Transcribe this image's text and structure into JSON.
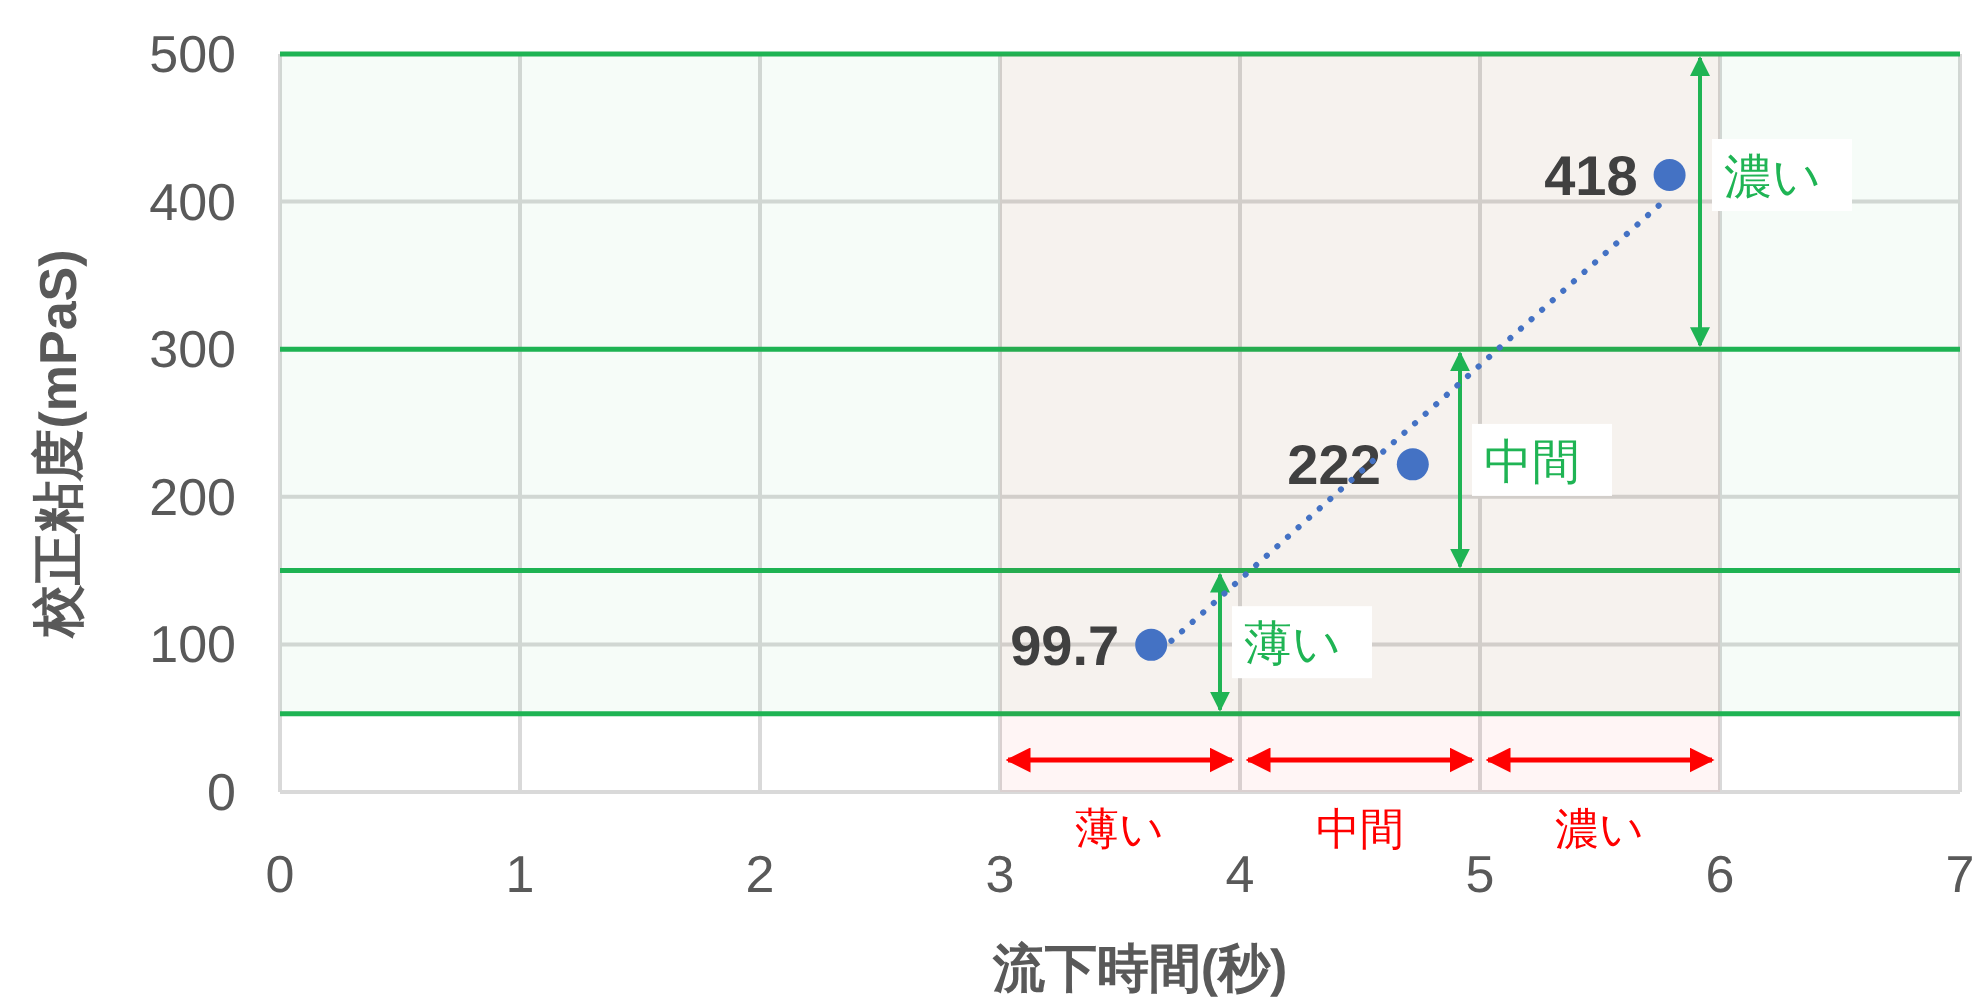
{
  "chart_data": {
    "type": "scatter",
    "xlabel": "流下時間(秒)",
    "ylabel": "校正粘度(mPaS)",
    "xlim": [
      0,
      7
    ],
    "xticks": [
      0,
      1,
      2,
      3,
      4,
      5,
      6,
      7
    ],
    "ylim": [
      0,
      500
    ],
    "yticks": [
      0,
      100,
      200,
      300,
      400,
      500
    ],
    "grid": true,
    "marker": "circle",
    "series": [
      {
        "color": "#4472c4",
        "x": [
          3.63,
          4.72,
          5.79
        ],
        "values": [
          99.7,
          222,
          418
        ],
        "value_labels": [
          "99.7",
          "222",
          "418"
        ]
      },
      {
        "type": "line",
        "color": "#4472c4",
        "line_style": "dotted",
        "marker": "none",
        "x": [
          3.67,
          5.77
        ],
        "values": [
          96,
          401
        ]
      }
    ],
    "ref_lines": [
      {
        "axis": "y",
        "value": 53,
        "color": "#1fb454"
      },
      {
        "axis": "y",
        "value": 150,
        "color": "#1fb454"
      },
      {
        "axis": "y",
        "value": 300,
        "color": "#1fb454"
      },
      {
        "axis": "y",
        "value": 500,
        "color": "#1fb454"
      }
    ],
    "bands": [
      {
        "axis": "y",
        "from": 53,
        "to": 150,
        "label": "薄い",
        "color": "#1fb454"
      },
      {
        "axis": "y",
        "from": 150,
        "to": 300,
        "label": "中間",
        "color": "#1fb454"
      },
      {
        "axis": "y",
        "from": 300,
        "to": 500,
        "label": "濃い",
        "color": "#1fb454"
      },
      {
        "axis": "x",
        "from": 3,
        "to": 4,
        "label": "薄い",
        "color": "#ff0000"
      },
      {
        "axis": "x",
        "from": 4,
        "to": 5,
        "label": "中間",
        "color": "#ff0000"
      },
      {
        "axis": "x",
        "from": 5,
        "to": 6,
        "label": "濃い",
        "color": "#ff0000"
      }
    ]
  }
}
